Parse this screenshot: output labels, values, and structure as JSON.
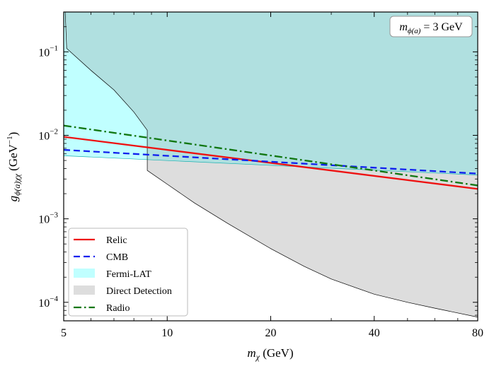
{
  "chart_data": {
    "type": "line",
    "annotation": {
      "label": "m",
      "sub": "ϕ(a)",
      "rest": " = 3 GeV"
    },
    "xlabel": {
      "main": "m",
      "sub": "χ",
      "rest": " (GeV)"
    },
    "ylabel": {
      "main": "g",
      "sub": "ϕ(a)χχ",
      "rest": " (GeV",
      "sup": "−1",
      "close": ")"
    },
    "x_scale": "log",
    "y_scale": "log",
    "xlim": [
      5,
      80
    ],
    "ylim": [
      6e-05,
      0.3
    ],
    "x_ticks": [
      {
        "value": 5,
        "label": "5"
      },
      {
        "value": 10,
        "label": "10"
      },
      {
        "value": 20,
        "label": "20"
      },
      {
        "value": 40,
        "label": "40"
      },
      {
        "value": 80,
        "label": "80"
      }
    ],
    "y_ticks": [
      {
        "value": 0.1,
        "base": "10",
        "exp": "−1"
      },
      {
        "value": 0.01,
        "base": "10",
        "exp": "−2"
      },
      {
        "value": 0.001,
        "base": "10",
        "exp": "−3"
      },
      {
        "value": 0.0001,
        "base": "10",
        "exp": "−4"
      }
    ],
    "legend": {
      "placement": "lower-left",
      "entries": [
        {
          "key": "relic",
          "label": "Relic",
          "kind": "line"
        },
        {
          "key": "cmb",
          "label": "CMB",
          "kind": "line"
        },
        {
          "key": "fermi",
          "label": "Fermi-LAT",
          "kind": "patch"
        },
        {
          "key": "direct",
          "label": "Direct Detection",
          "kind": "patch"
        },
        {
          "key": "radio",
          "label": "Radio",
          "kind": "line"
        }
      ]
    },
    "series": [
      {
        "key": "relic",
        "name": "Relic",
        "style": "solid",
        "color": "#ee1111",
        "x": [
          5,
          80
        ],
        "y": [
          0.0096,
          0.00228
        ]
      },
      {
        "key": "cmb",
        "name": "CMB",
        "style": "dashed",
        "color": "#1020ee",
        "x": [
          5,
          80
        ],
        "y": [
          0.0067,
          0.00348
        ]
      },
      {
        "key": "radio",
        "name": "Radio",
        "style": "dashdot",
        "color": "#117711",
        "x": [
          5,
          80
        ],
        "y": [
          0.0131,
          0.00251
        ]
      }
    ],
    "regions": [
      {
        "key": "fermi",
        "name": "Fermi-LAT",
        "color": "#c0ffff",
        "bound": "lower",
        "x": [
          5,
          80
        ],
        "y": [
          0.0057,
          0.00335
        ]
      },
      {
        "key": "direct",
        "name": "Direct Detection",
        "color": "#dddddd",
        "bound": "lower",
        "x": [
          5,
          5.05,
          5.1,
          6,
          7,
          8,
          8.75,
          8.75,
          10,
          12,
          15,
          20,
          25,
          30,
          40,
          50,
          60,
          80
        ],
        "y": [
          0.3,
          0.3,
          0.11,
          0.06,
          0.035,
          0.019,
          0.0115,
          0.0038,
          0.0026,
          0.00155,
          0.00088,
          0.00044,
          0.00027,
          0.00019,
          0.000125,
          0.0001,
          8.5e-05,
          6.65e-05
        ]
      }
    ]
  }
}
